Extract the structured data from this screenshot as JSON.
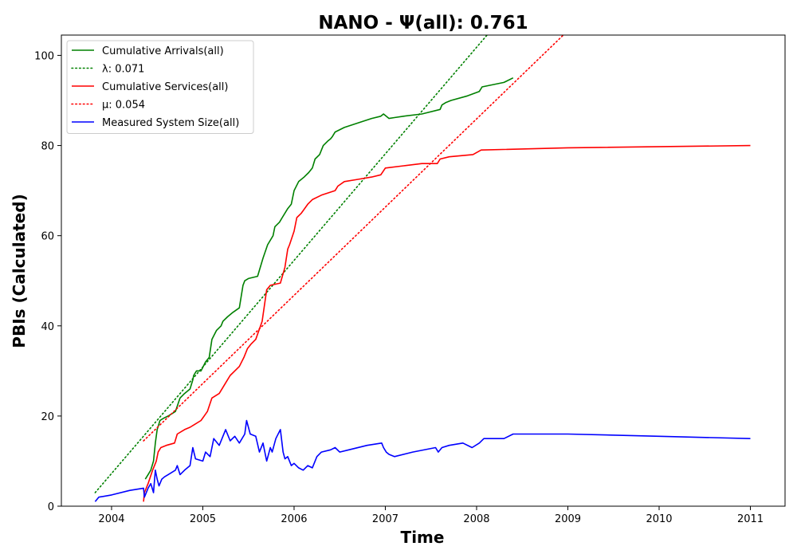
{
  "chart_data": {
    "type": "line",
    "title": "NANO -  Ψ(all): 0.761",
    "xlabel": "Time",
    "ylabel": "PBIs (Calculated)",
    "xlim": [
      2003.45,
      2011.38
    ],
    "ylim": [
      0,
      104.5
    ],
    "x_ticks": [
      2004,
      2005,
      2006,
      2007,
      2008,
      2009,
      2010,
      2011
    ],
    "y_ticks": [
      0,
      20,
      40,
      60,
      80,
      100
    ],
    "grid": false,
    "legend_position": "top-left",
    "series": [
      {
        "name": "Cumulative Arrivals(all)",
        "color": "#008000",
        "style": "solid",
        "x": [
          2004.37,
          2004.4,
          2004.43,
          2004.46,
          2004.48,
          2004.5,
          2004.53,
          2004.57,
          2004.62,
          2004.7,
          2004.75,
          2004.8,
          2004.86,
          2004.89,
          2004.9,
          2004.93,
          2004.98,
          2005.03,
          2005.07,
          2005.1,
          2005.15,
          2005.2,
          2005.22,
          2005.27,
          2005.33,
          2005.4,
          2005.44,
          2005.46,
          2005.5,
          2005.6,
          2005.66,
          2005.71,
          2005.77,
          2005.79,
          2005.84,
          2005.87,
          2005.93,
          2005.97,
          2006.0,
          2006.05,
          2006.11,
          2006.16,
          2006.2,
          2006.23,
          2006.28,
          2006.32,
          2006.37,
          2006.4,
          2006.42,
          2006.45,
          2006.55,
          2006.7,
          2006.85,
          2006.95,
          2006.98,
          2007.01,
          2007.04,
          2007.1,
          2007.2,
          2007.4,
          2007.6,
          2007.62,
          2007.66,
          2007.72,
          2007.9,
          2008.03,
          2008.06,
          2008.3,
          2008.4
        ],
        "values": [
          6,
          7,
          8,
          10,
          14,
          17,
          19,
          19.5,
          20,
          21,
          24,
          25,
          26,
          28,
          29,
          30,
          30,
          32,
          33,
          37,
          39,
          40,
          41,
          42,
          43,
          44,
          49,
          50,
          50.5,
          51,
          55,
          58,
          60,
          62,
          63,
          64,
          66,
          67,
          70,
          72,
          73,
          74,
          75,
          77,
          78,
          80,
          81,
          81.5,
          82,
          83,
          84,
          85,
          86,
          86.5,
          87,
          86.5,
          86,
          86.2,
          86.5,
          87,
          88,
          89,
          89.5,
          90,
          91,
          92,
          93,
          94,
          95
        ]
      },
      {
        "name": "λ: 0.071",
        "color": "#008000",
        "style": "dotted",
        "x": [
          2003.82,
          2008.22
        ],
        "values": [
          3,
          107
        ]
      },
      {
        "name": "Cumulative Services(all)",
        "color": "#ff0000",
        "style": "solid",
        "x": [
          2004.35,
          2004.36,
          2004.4,
          2004.45,
          2004.49,
          2004.51,
          2004.54,
          2004.6,
          2004.69,
          2004.72,
          2004.8,
          2004.86,
          2004.9,
          2004.98,
          2005.05,
          2005.1,
          2005.18,
          2005.27,
          2005.3,
          2005.35,
          2005.4,
          2005.45,
          2005.49,
          2005.53,
          2005.58,
          2005.65,
          2005.7,
          2005.74,
          2005.85,
          2005.9,
          2005.93,
          2005.95,
          2006.0,
          2006.03,
          2006.08,
          2006.15,
          2006.2,
          2006.3,
          2006.45,
          2006.48,
          2006.55,
          2006.7,
          2006.85,
          2006.95,
          2007.0,
          2007.2,
          2007.4,
          2007.5,
          2007.57,
          2007.6,
          2007.7,
          2007.96,
          2008.05,
          2009.0,
          2011.0
        ],
        "values": [
          1,
          3,
          5,
          8,
          10,
          12,
          13,
          13.5,
          14,
          16,
          17,
          17.5,
          18,
          19,
          21,
          24,
          25,
          28,
          29,
          30,
          31,
          33,
          35,
          36,
          37,
          41,
          48,
          49,
          49.5,
          53,
          57,
          58,
          61,
          64,
          65,
          67,
          68,
          69,
          70,
          71,
          72,
          72.5,
          73,
          73.5,
          75,
          75.5,
          76,
          76,
          76,
          77,
          77.5,
          78,
          79,
          79.5,
          80
        ]
      },
      {
        "name": "μ: 0.054",
        "color": "#ff0000",
        "style": "dotted",
        "x": [
          2004.35,
          2008.95
        ],
        "values": [
          14.5,
          104.5
        ]
      },
      {
        "name": "Measured System Size(all)",
        "color": "#0000ff",
        "style": "solid",
        "x": [
          2003.82,
          2003.86,
          2004.0,
          2004.2,
          2004.35,
          2004.36,
          2004.4,
          2004.43,
          2004.46,
          2004.48,
          2004.5,
          2004.52,
          2004.55,
          2004.58,
          2004.62,
          2004.7,
          2004.72,
          2004.75,
          2004.8,
          2004.86,
          2004.89,
          2004.92,
          2005.0,
          2005.03,
          2005.08,
          2005.1,
          2005.12,
          2005.18,
          2005.25,
          2005.3,
          2005.35,
          2005.4,
          2005.46,
          2005.48,
          2005.52,
          2005.58,
          2005.62,
          2005.66,
          2005.7,
          2005.74,
          2005.76,
          2005.8,
          2005.85,
          2005.88,
          2005.9,
          2005.93,
          2005.97,
          2006.0,
          2006.05,
          2006.1,
          2006.15,
          2006.2,
          2006.25,
          2006.3,
          2006.4,
          2006.45,
          2006.5,
          2006.6,
          2006.8,
          2006.96,
          2006.98,
          2007.01,
          2007.04,
          2007.1,
          2007.3,
          2007.55,
          2007.58,
          2007.62,
          2007.7,
          2007.85,
          2007.95,
          2008.03,
          2008.08,
          2008.3,
          2008.4,
          2009.0,
          2010.0,
          2011.0
        ],
        "values": [
          1,
          2,
          2.5,
          3.5,
          4,
          2,
          4,
          5,
          3,
          8,
          6,
          4.5,
          6,
          6.5,
          7,
          8,
          9,
          7,
          8,
          9,
          13,
          10.5,
          10,
          12,
          11,
          13,
          15,
          13.5,
          17,
          14.5,
          15.5,
          14,
          16,
          19,
          16,
          15.5,
          12,
          14,
          10,
          13,
          12,
          15,
          17,
          12,
          10.5,
          11,
          9,
          9.5,
          8.5,
          8,
          9,
          8.5,
          11,
          12,
          12.5,
          13,
          12,
          12.5,
          13.5,
          14,
          13,
          12,
          11.5,
          11,
          12,
          13,
          12,
          13,
          13.5,
          14,
          13,
          14,
          15,
          15,
          16,
          16,
          15.5,
          15
        ]
      }
    ]
  }
}
